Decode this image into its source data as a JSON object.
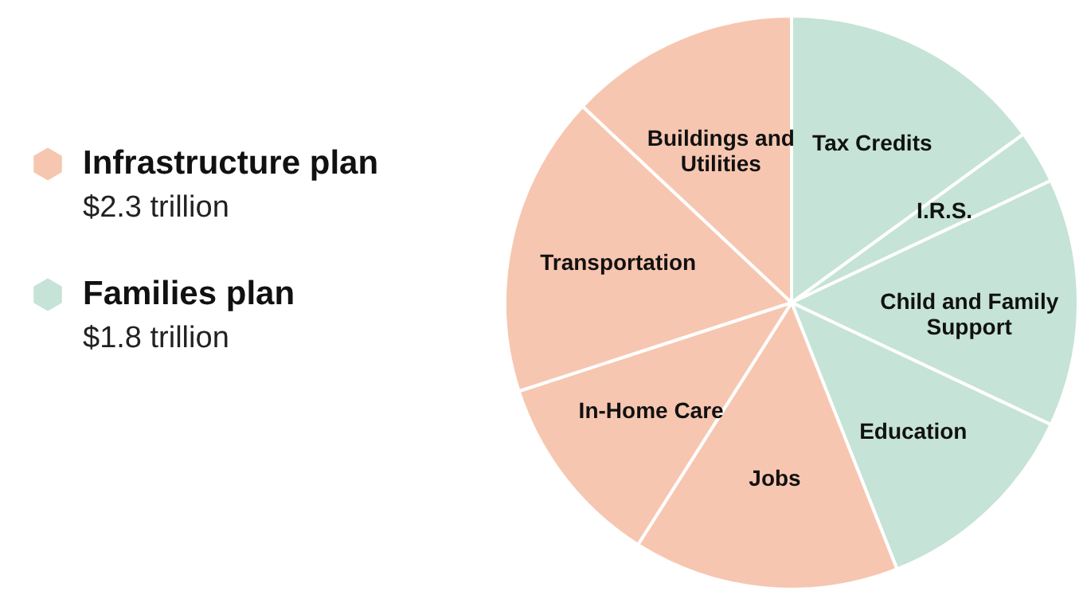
{
  "chart_data": {
    "type": "pie",
    "categories": [
      "Tax Credits",
      "I.R.S.",
      "Child and Family Support",
      "Education",
      "Jobs",
      "In-Home Care",
      "Transportation",
      "Buildings and Utilities"
    ],
    "values": [
      15,
      3,
      14,
      12,
      15,
      11,
      17,
      13
    ],
    "colors": [
      "#c5e3d6",
      "#c5e3d6",
      "#c5e3d6",
      "#c5e3d6",
      "#f7c6b0",
      "#f7c6b0",
      "#f7c6b0",
      "#f7c6b0"
    ],
    "annotations": [
      "Infrastructure plan",
      "$2.3 trillion",
      "Families plan",
      "$1.8 trillion"
    ]
  }
}
